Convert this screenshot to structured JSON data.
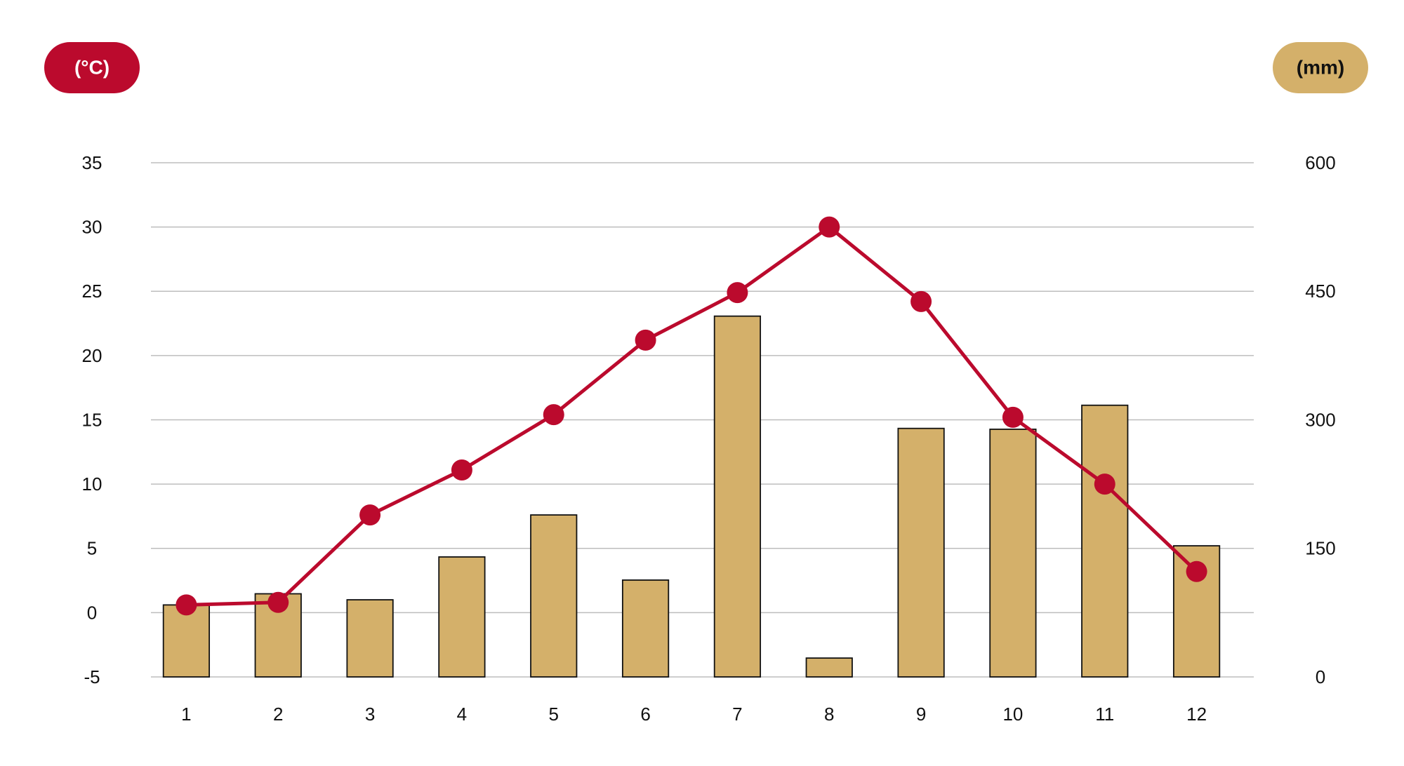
{
  "chart_data": {
    "type": "combo",
    "y_label": "(°C)",
    "y2_label": "(mm)",
    "categories": [
      "1",
      "2",
      "3",
      "4",
      "5",
      "6",
      "7",
      "8",
      "9",
      "10",
      "11",
      "12"
    ],
    "series": [
      {
        "type": "bar",
        "axis": "y2",
        "color": "#d4b06a",
        "values": [
          84,
          97,
          90,
          140,
          189,
          113,
          421,
          22,
          290,
          289,
          317,
          153
        ]
      },
      {
        "type": "line",
        "axis": "y",
        "color": "#bb0a2d",
        "values": [
          0.6,
          0.8,
          7.6,
          11.1,
          15.4,
          21.2,
          24.9,
          30.0,
          24.2,
          15.2,
          10.0,
          3.2
        ]
      }
    ],
    "ylim": [
      -5,
      35
    ],
    "yticks": [
      -5,
      0,
      5,
      10,
      15,
      20,
      25,
      30,
      35
    ],
    "y2lim": [
      0,
      600
    ],
    "y2ticks": [
      0,
      150,
      300,
      450,
      600
    ],
    "grid": true
  }
}
